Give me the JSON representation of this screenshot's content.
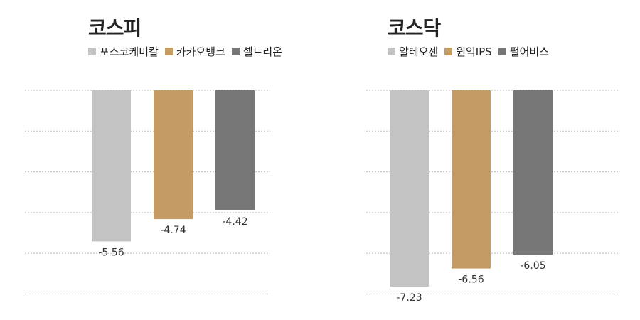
{
  "chart_data": [
    {
      "type": "bar",
      "title": "코스피",
      "categories": [
        "포스코케미칼",
        "카카오뱅크",
        "셀트리온"
      ],
      "values": [
        -5.56,
        -4.74,
        -4.42
      ],
      "value_labels": [
        "-5.56",
        "-4.74",
        "-4.42"
      ],
      "colors": [
        "#c3c3c3",
        "#c49c63",
        "#777777"
      ],
      "ylim": [
        -7.5,
        0
      ],
      "grid": true,
      "legend": "top-left"
    },
    {
      "type": "bar",
      "title": "코스닥",
      "categories": [
        "알테오젠",
        "원익IPS",
        "펄어비스"
      ],
      "values": [
        -7.23,
        -6.56,
        -6.05
      ],
      "value_labels": [
        "-7.23",
        "-6.56",
        "-6.05"
      ],
      "colors": [
        "#c3c3c3",
        "#c49c63",
        "#777777"
      ],
      "ylim": [
        -7.5,
        0
      ],
      "grid": true,
      "legend": "top-left"
    }
  ]
}
